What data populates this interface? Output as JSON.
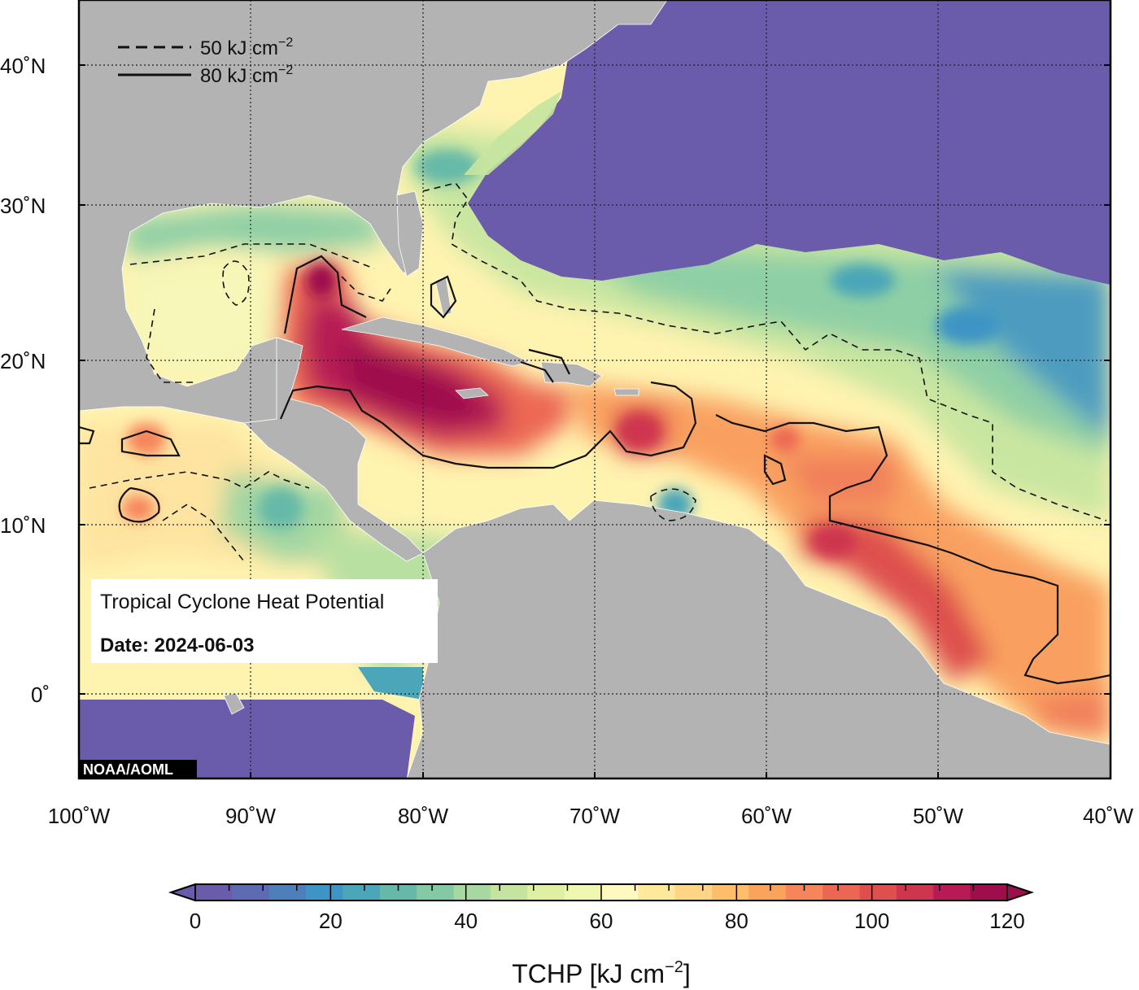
{
  "title": "Tropical Cyclone Heat Potential",
  "date_label": "Date: 2024-06-03",
  "credit": "NOAA/AOML",
  "legend": {
    "dashed_label": "50 kJ cm",
    "solid_label": "80 kJ cm",
    "unit_exp": "−2"
  },
  "map_extent": {
    "lon": [
      -100,
      -40
    ],
    "lat": [
      -5,
      45
    ]
  },
  "lat_ticks": [
    {
      "value": 40,
      "label": "40˚N"
    },
    {
      "value": 30,
      "label": "30˚N"
    },
    {
      "value": 20,
      "label": "20˚N"
    },
    {
      "value": 10,
      "label": "10˚N"
    },
    {
      "value": 0,
      "label": "0˚"
    }
  ],
  "lon_ticks": [
    {
      "value": -100,
      "label": "100˚W"
    },
    {
      "value": -90,
      "label": "90˚W"
    },
    {
      "value": -80,
      "label": "80˚W"
    },
    {
      "value": -70,
      "label": "70˚W"
    },
    {
      "value": -60,
      "label": "60˚W"
    },
    {
      "value": -50,
      "label": "50˚W"
    },
    {
      "value": -40,
      "label": "40˚W"
    }
  ],
  "colorbar": {
    "min": 0,
    "max": 120,
    "tick_labels": [
      "0",
      "20",
      "40",
      "60",
      "80",
      "100",
      "120"
    ],
    "title": "TCHP [kJ cm",
    "title_exp": "−2",
    "title_close": "]",
    "colors": [
      "#6a5bab",
      "#5d6cb2",
      "#4d80bb",
      "#3d94c5",
      "#4aa6b8",
      "#66b9a8",
      "#85c9a4",
      "#a7d8a2",
      "#c5e4a0",
      "#dff0a3",
      "#f0f7b0",
      "#fff8bf",
      "#fee99a",
      "#fed584",
      "#fdbd6b",
      "#fba25d",
      "#f6855b",
      "#ec6753",
      "#de4f4e",
      "#ce3650",
      "#b71a55",
      "#9f0d4d"
    ]
  },
  "colors": {
    "land": "#b3b3b3",
    "cold_ocean": "#6a5bab",
    "ocean_base": "#fff3b0"
  }
}
